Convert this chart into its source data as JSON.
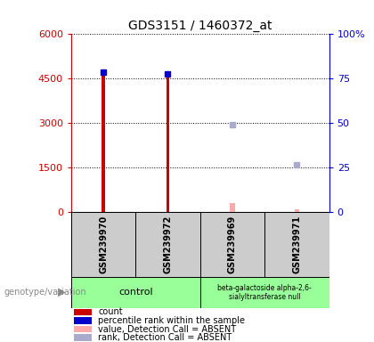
{
  "title": "GDS3151 / 1460372_at",
  "samples": [
    "GSM239970",
    "GSM239972",
    "GSM239969",
    "GSM239971"
  ],
  "count_present": [
    4820,
    4700,
    null,
    null
  ],
  "count_absent": [
    null,
    null,
    300,
    80
  ],
  "rank_present_pct": [
    78.5,
    77.5,
    null,
    null
  ],
  "rank_absent_pct": [
    null,
    null,
    49.0,
    26.5
  ],
  "groups": [
    {
      "label": "control",
      "start": 0,
      "end": 1
    },
    {
      "label": "beta-galactoside alpha-2,6-\nsialyltransferase null",
      "start": 2,
      "end": 3
    }
  ],
  "ylim_left": [
    0,
    6000
  ],
  "ylim_right": [
    0,
    100
  ],
  "left_ticks": [
    0,
    1500,
    3000,
    4500,
    6000
  ],
  "right_ticks": [
    0,
    25,
    50,
    75,
    100
  ],
  "left_tick_labels": [
    "0",
    "1500",
    "3000",
    "4500",
    "6000"
  ],
  "right_tick_labels": [
    "0",
    "25",
    "50",
    "75",
    "100%"
  ],
  "left_color": "#cc0000",
  "right_color": "#0000cc",
  "bar_width": 0.05,
  "count_color_present": "#cc0000",
  "rank_color_present": "#0000cc",
  "count_color_absent": "#ffaaaa",
  "rank_color_absent": "#aaaacc",
  "legend_items": [
    {
      "label": "count",
      "color": "#cc0000"
    },
    {
      "label": "percentile rank within the sample",
      "color": "#0000cc"
    },
    {
      "label": "value, Detection Call = ABSENT",
      "color": "#ffaaaa"
    },
    {
      "label": "rank, Detection Call = ABSENT",
      "color": "#aaaacc"
    }
  ],
  "genotype_label": "genotype/variation",
  "plot_bg": "#ffffff",
  "sample_box_bg": "#cccccc",
  "group_box_bg": "#99ff99"
}
